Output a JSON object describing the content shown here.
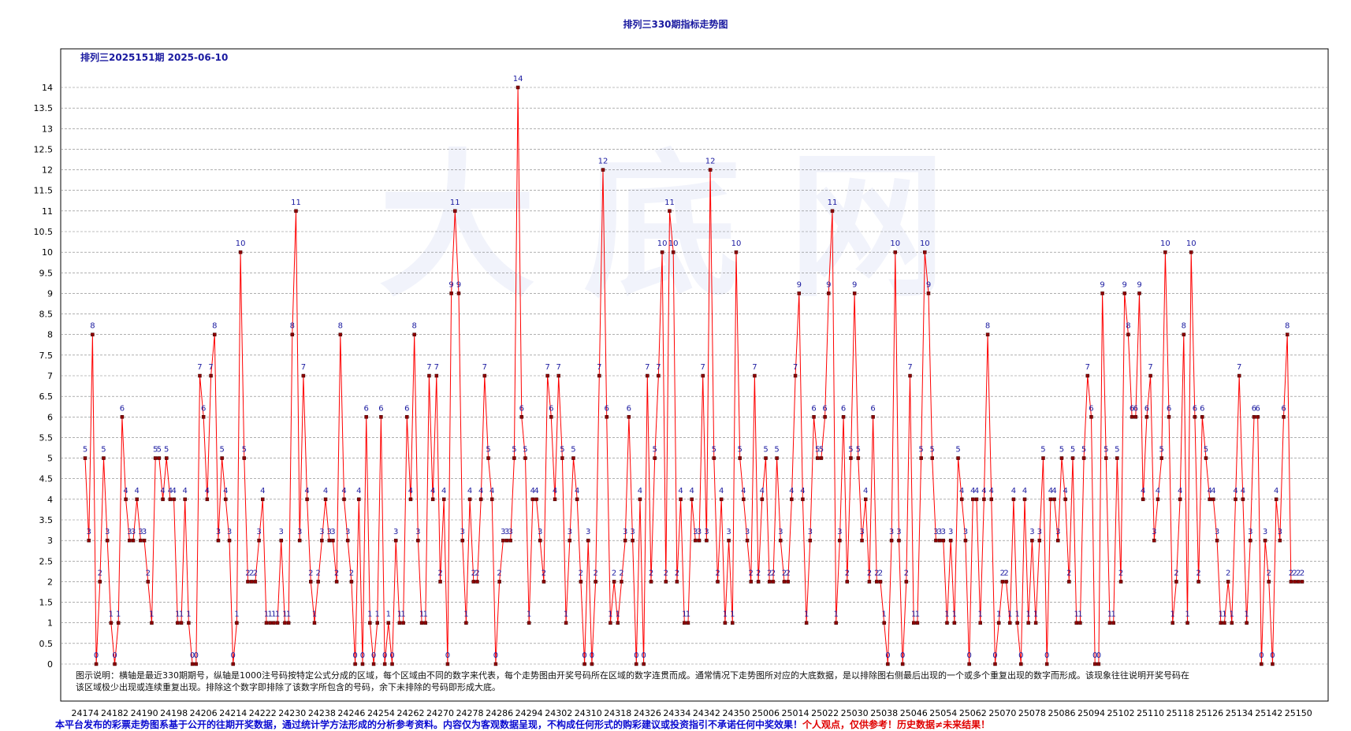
{
  "page": {
    "title": "排列三330期指标走势图",
    "subtitle": "排列三2025151期  2025-06-10",
    "explanation": "图示说明：横轴是最近330期期号，纵轴是1000注号码按特定公式分成的区域，每个区域由不同的数字来代表，每个走势图由开奖号码所在区域的数字连贯而成。通常情况下走势图所对应的大底数据，是以排除图右侧最后出现的一个或多个重复出现的数字而形成。该现象往往说明开奖号码在该区域极少出现或连续重复出现。排除这个数字即排除了该数字所包含的号码，余下未排除的号码即形成大底。",
    "footer_note": "本平台发布的彩票走势图系基于公开的往期开奖数据，通过统计学方法形成的分析参考资料。内容仅为客观数据呈现，不构成任何形式的购彩建议或投资指引不承诺任何中奖效果！",
    "footer_warning": "个人观点，仅供参考！历史数据≠未来结果！",
    "watermark": "大底网"
  },
  "colors": {
    "line": "#ff0000",
    "marker": "#8b0000",
    "label": "#1a1aa0",
    "grid": "#808080",
    "frame": "#000000"
  },
  "chart_data": {
    "type": "line",
    "title": "排列三330期指标走势图",
    "xlabel": "",
    "ylabel": "",
    "ylim": [
      0,
      14
    ],
    "ytick_step": 0.5,
    "grid": "horizontal dashed",
    "x_tick_labels": [
      "24174",
      "24182",
      "24190",
      "24198",
      "24206",
      "24214",
      "24222",
      "24230",
      "24238",
      "24246",
      "24254",
      "24262",
      "24270",
      "24278",
      "24286",
      "24294",
      "24302",
      "24310",
      "24318",
      "24326",
      "24334",
      "24342",
      "24350",
      "25006",
      "25014",
      "25022",
      "25030",
      "25038",
      "25046",
      "25054",
      "25062",
      "25070",
      "25078",
      "25086",
      "25094",
      "25102",
      "25110",
      "25118",
      "25126",
      "25134",
      "25142",
      "25150"
    ],
    "series": [
      {
        "values": [
          5,
          3,
          8,
          0,
          2,
          5,
          3,
          1,
          0,
          1,
          6,
          4,
          3,
          3,
          4,
          3,
          3,
          2,
          1,
          5,
          5,
          4,
          5,
          4,
          4,
          1,
          1,
          4,
          1,
          0,
          0,
          7,
          6,
          4,
          7,
          8,
          3,
          5,
          4,
          3,
          0,
          1,
          10,
          5,
          2,
          2,
          2,
          3,
          4,
          1,
          1,
          1,
          1,
          3,
          1,
          1,
          8,
          11,
          3,
          7,
          4,
          2,
          1,
          2,
          3,
          4,
          3,
          3,
          2,
          8,
          4,
          3,
          2,
          0,
          4,
          0,
          6,
          1,
          0,
          1,
          6,
          0,
          1,
          0,
          3,
          1,
          1,
          6,
          4,
          8,
          3,
          1,
          1,
          7,
          4,
          7,
          2,
          4,
          0,
          9,
          11,
          9,
          3,
          1,
          4,
          2,
          2,
          4,
          7,
          5,
          4,
          0,
          2,
          3,
          3,
          3,
          5,
          14,
          6,
          5,
          1,
          4,
          4,
          3,
          2,
          7,
          6,
          4,
          7,
          5,
          1,
          3,
          5,
          4,
          2,
          0,
          3,
          0,
          2,
          7,
          12,
          6,
          1,
          2,
          1,
          2,
          3,
          6,
          3,
          0,
          4,
          0,
          7,
          2,
          5,
          7,
          10,
          2,
          11,
          10,
          2,
          4,
          1,
          1,
          4,
          3,
          3,
          7,
          3,
          12,
          5,
          2,
          4,
          1,
          3,
          1,
          10,
          5,
          4,
          3,
          2,
          7,
          2,
          4,
          5,
          2,
          2,
          5,
          3,
          2,
          2,
          4,
          7,
          9,
          4,
          1,
          3,
          6,
          5,
          5,
          6,
          9,
          11,
          1,
          3,
          6,
          2,
          5,
          9,
          5,
          3,
          4,
          2,
          6,
          2,
          2,
          1,
          0,
          3,
          10,
          3,
          0,
          2,
          7,
          1,
          1,
          5,
          10,
          9,
          5,
          3,
          3,
          3,
          1,
          3,
          1,
          5,
          4,
          3,
          0,
          4,
          4,
          1,
          4,
          8,
          4,
          0,
          1,
          2,
          2,
          1,
          4,
          1,
          0,
          4,
          1,
          3,
          1,
          3,
          5,
          0,
          4,
          4,
          3,
          5,
          4,
          2,
          5,
          1,
          1,
          5,
          7,
          6,
          0,
          0,
          9,
          5,
          1,
          1,
          5,
          2,
          9,
          8,
          6,
          6,
          9,
          4,
          6,
          7,
          3,
          4,
          5,
          10,
          6,
          1,
          2,
          4,
          8,
          1,
          10,
          6,
          2,
          6,
          5,
          4,
          4,
          3,
          1,
          1,
          2,
          1,
          4,
          7,
          4,
          1,
          3,
          6,
          6,
          0,
          3,
          2,
          0,
          4,
          3,
          6,
          8,
          2,
          2,
          2,
          2
        ]
      }
    ]
  }
}
